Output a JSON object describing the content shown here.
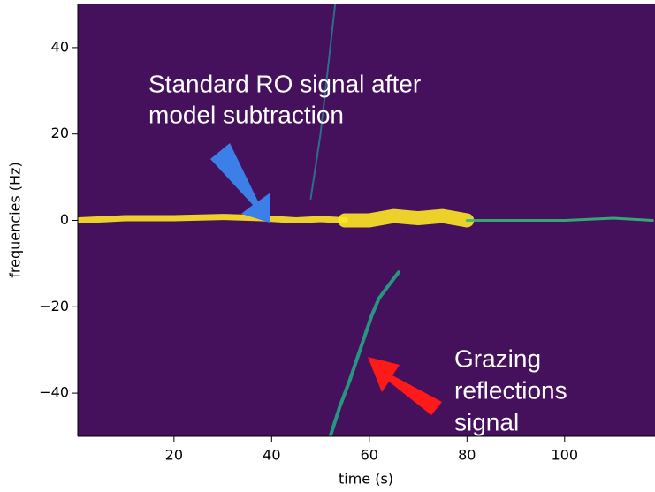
{
  "chart_data": {
    "type": "spectrogram",
    "xlabel": "time (s)",
    "ylabel": "frequencies (Hz)",
    "xlim": [
      0.3,
      118.5
    ],
    "ylim": [
      -50,
      50
    ],
    "xticks": [
      20,
      40,
      60,
      80,
      100
    ],
    "yticks": [
      {
        "value": -40,
        "label": "−40"
      },
      {
        "value": -20,
        "label": "−20"
      },
      0,
      20,
      40
    ],
    "background": "#45115c",
    "traces": [
      {
        "color": "#fde725",
        "width": 7,
        "x": [
          0.5,
          10,
          20,
          30,
          38,
          45,
          50,
          55
        ],
        "y": [
          0,
          0.5,
          0.5,
          0.8,
          0.5,
          0,
          0.3,
          0
        ]
      },
      {
        "color": "#fde725",
        "width": 16,
        "x": [
          55,
          60,
          65,
          70,
          75,
          80
        ],
        "y": [
          0,
          0,
          1,
          0.5,
          1,
          0
        ]
      },
      {
        "color": "#35b779",
        "width": 3,
        "x": [
          80,
          90,
          100,
          110,
          118
        ],
        "y": [
          0,
          0,
          0,
          0.5,
          0
        ]
      },
      {
        "color": "#21a685",
        "width": 4,
        "x": [
          52,
          54,
          56,
          57.5,
          59,
          60.5,
          62,
          64,
          66
        ],
        "y": [
          -50,
          -43,
          -37,
          -32,
          -27,
          -22,
          -18,
          -15,
          -12
        ]
      },
      {
        "color": "#2a788e",
        "width": 2,
        "x": [
          48,
          50,
          52,
          53
        ],
        "y": [
          5,
          20,
          40,
          50
        ]
      }
    ],
    "annotations": [
      {
        "lines": [
          "Standard RO signal after",
          "model subtraction"
        ]
      },
      {
        "lines": [
          "Grazing",
          "reflections",
          "signal"
        ]
      }
    ]
  }
}
